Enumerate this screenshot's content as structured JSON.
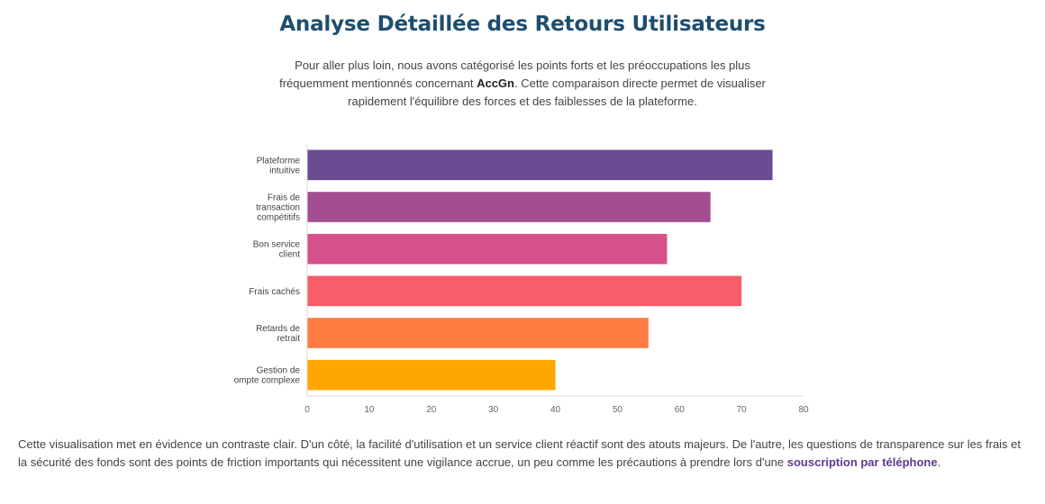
{
  "header": {
    "title": "Analyse Détaillée des Retours Utilisateurs"
  },
  "intro": {
    "part1": "Pour aller plus loin, nous avons catégorisé les points forts et les préoccupations les plus fréquemment mentionnés concernant ",
    "brand": "AccGn",
    "part2": ". Cette comparaison directe permet de visualiser rapidement l'équilibre des forces et des faiblesses de la plateforme."
  },
  "chart_data": {
    "type": "bar",
    "orientation": "horizontal",
    "categories": [
      [
        "Plateforme",
        "intuitive"
      ],
      [
        "Frais de",
        "transaction",
        "compétitifs"
      ],
      [
        "Bon service",
        "client"
      ],
      [
        "Frais cachés"
      ],
      [
        "Retards de",
        "retrait"
      ],
      [
        "Gestion de",
        "ompte complexe"
      ]
    ],
    "values": [
      75,
      65,
      58,
      70,
      55,
      40
    ],
    "colors": [
      "#6a4c93",
      "#a44d92",
      "#d6508a",
      "#f95d6a",
      "#ff7c43",
      "#ffa600"
    ],
    "xlim": [
      0,
      80
    ],
    "xticks": [
      0,
      10,
      20,
      30,
      40,
      50,
      60,
      70,
      80
    ],
    "title": "",
    "xlabel": "",
    "ylabel": "",
    "grid": false,
    "legend": "none"
  },
  "outro": {
    "text": "Cette visualisation met en évidence un contraste clair. D'un côté, la facilité d'utilisation et un service client réactif sont des atouts majeurs. De l'autre, les questions de transparence sur les frais et la sécurité des fonds sont des points de friction importants qui nécessitent une vigilance accrue, un peu comme les précautions à prendre lors d'une ",
    "link": "souscription par téléphone",
    "end": "."
  }
}
